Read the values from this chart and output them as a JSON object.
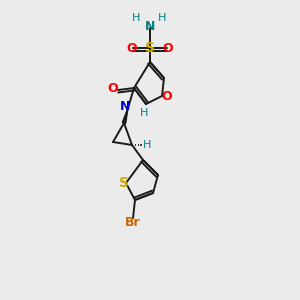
{
  "bg_color": "#ebebeb",
  "atom_colors": {
    "O": "#ff0000",
    "N": "#0000cd",
    "S_sulfo": "#ccaa00",
    "S_thio": "#ccaa00",
    "Br": "#cc6600",
    "H": "#008080",
    "C": "#1a1a1a"
  }
}
